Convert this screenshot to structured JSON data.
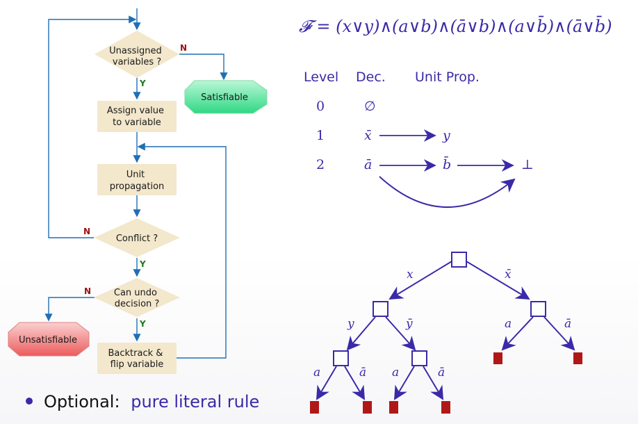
{
  "flowchart": {
    "unassigned": [
      "Unassigned",
      "variables ?"
    ],
    "satisfiable": "Satisfiable",
    "assign": [
      "Assign value",
      "to variable"
    ],
    "unit_prop": [
      "Unit",
      "propagation"
    ],
    "conflict": "Conflict ?",
    "can_undo": [
      "Can undo",
      "decision ?"
    ],
    "unsatisfiable": "Unsatisfiable",
    "backtrack": [
      "Backtrack &",
      "flip variable"
    ],
    "edge_labels": {
      "no": "N",
      "yes": "Y"
    }
  },
  "formula": "𝓕 = (x∨y)∧(a∨b)∧(ā∨b)∧(a∨b̄)∧(ā∨b̄)",
  "trail": {
    "headers": {
      "level": "Level",
      "decision": "Dec.",
      "unit_prop": "Unit Prop."
    },
    "rows": [
      {
        "level": "0",
        "decision": "∅",
        "props": []
      },
      {
        "level": "1",
        "decision": "x̄",
        "props": [
          "y"
        ]
      },
      {
        "level": "2",
        "decision": "ā",
        "props": [
          "b̄",
          "⊥"
        ]
      }
    ]
  },
  "tree": {
    "root_edges": [
      "x",
      "x̄"
    ],
    "left_edges": [
      "y",
      "ȳ"
    ],
    "right_edges": [
      "a",
      "ā"
    ],
    "ll_edges": [
      "a",
      "ā"
    ],
    "lr_edges": [
      "a",
      "ā"
    ]
  },
  "bullet": {
    "prefix": "Optional:",
    "text": "pure literal rule"
  },
  "colors": {
    "flow_box": "#f3e7cc",
    "arrow": "#1f6fb5",
    "accent": "#3a2aa8",
    "leaf": "#b01818",
    "satisfiable": "#3ee08a",
    "unsatisfiable": "#f07070"
  }
}
